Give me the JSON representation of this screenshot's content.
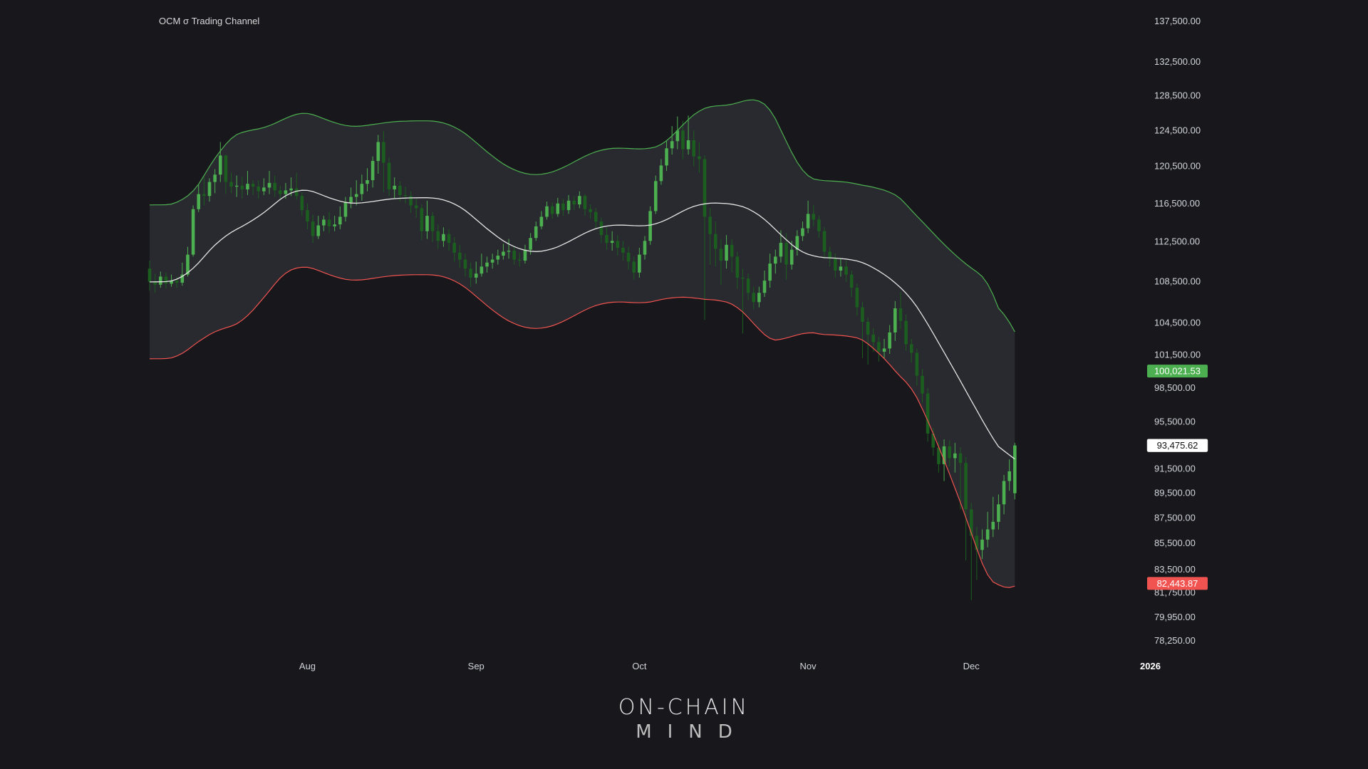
{
  "chart_data": {
    "type": "candlestick",
    "title": "OCM σ Trading Channel",
    "y_axis": {
      "ticks": [
        "137,500.00",
        "132,500.00",
        "128,500.00",
        "124,500.00",
        "120,500.00",
        "116,500.00",
        "112,500.00",
        "108,500.00",
        "104,500.00",
        "101,500.00",
        "98,500.00",
        "95,500.00",
        "91,500.00",
        "89,500.00",
        "87,500.00",
        "85,500.00",
        "83,500.00",
        "81,750.00",
        "79,950.00",
        "78,250.00"
      ],
      "range": [
        78250,
        137500
      ],
      "scale": "log"
    },
    "x_axis": {
      "ticks": [
        "Aug",
        "Sep",
        "Oct",
        "Nov",
        "Dec",
        "2026"
      ],
      "range": [
        "2025-07-03",
        "2026-01-01"
      ]
    },
    "price_labels": {
      "upper": {
        "text": "100,021.53",
        "color": "#4caf50"
      },
      "middle": {
        "text": "93,475.62",
        "color": "#ffffff"
      },
      "lower": {
        "text": "82,443.87",
        "color": "#f05350"
      }
    },
    "series": [
      {
        "name": "upper band",
        "color": "#4caf50"
      },
      {
        "name": "middle",
        "color": "#e6e6e6"
      },
      {
        "name": "lower band",
        "color": "#f05350"
      }
    ],
    "dates_start": "2025-07-03",
    "candles_close": [
      108500,
      108200,
      109000,
      108300,
      108600,
      108400,
      109200,
      111200,
      115900,
      117500,
      117300,
      118800,
      119600,
      121700,
      118800,
      118300,
      118400,
      118000,
      118600,
      118300,
      117800,
      118200,
      118700,
      117900,
      117500,
      117900,
      118100,
      117300,
      115800,
      114600,
      113100,
      114200,
      114800,
      114100,
      114300,
      115100,
      116600,
      117200,
      117500,
      118600,
      119000,
      121100,
      123200,
      120900,
      118000,
      118400,
      117400,
      117300,
      116300,
      116000,
      113600,
      115200,
      113600,
      112600,
      113300,
      112400,
      111400,
      110700,
      109800,
      108900,
      109300,
      110000,
      110400,
      110700,
      111100,
      111500,
      111600,
      110700,
      110600,
      111700,
      112900,
      114100,
      115100,
      116200,
      115400,
      116500,
      115800,
      116800,
      116400,
      117300,
      115900,
      115600,
      114600,
      113200,
      112400,
      112600,
      111900,
      111400,
      110500,
      109400,
      111200,
      112600,
      115700,
      118900,
      120600,
      122500,
      123300,
      124500,
      122400,
      123400,
      121600,
      121300,
      115100,
      113300,
      111800,
      110600,
      112200,
      111000,
      108900,
      108800,
      107400,
      106500,
      107400,
      108600,
      110300,
      111000,
      112400,
      110200,
      111700,
      113100,
      113900,
      115400,
      114800,
      113600,
      111500,
      110800,
      109600,
      110000,
      109200,
      107900,
      106000,
      104600,
      103400,
      102700,
      101800,
      102100,
      103600,
      105900,
      104700,
      102500,
      101700,
      99600,
      98000,
      94500,
      93300,
      91900,
      93400,
      92400,
      92800,
      92000,
      88200,
      86100,
      85000,
      85800,
      86600,
      87200,
      88600,
      90500,
      91300,
      93475
    ],
    "candles": [
      {
        "o": 109800,
        "c": 108500,
        "h": 110600,
        "l": 107600
      },
      {
        "o": 108500,
        "c": 108200,
        "h": 109300,
        "l": 107400
      },
      {
        "o": 108200,
        "c": 109000,
        "h": 109500,
        "l": 107900
      },
      {
        "o": 109000,
        "c": 108300,
        "h": 109400,
        "l": 107800
      },
      {
        "o": 108300,
        "c": 108600,
        "h": 109200,
        "l": 108000
      },
      {
        "o": 108600,
        "c": 108400,
        "h": 109000,
        "l": 107900
      },
      {
        "o": 108400,
        "c": 109200,
        "h": 110400,
        "l": 108100
      },
      {
        "o": 109200,
        "c": 111200,
        "h": 112000,
        "l": 109000
      },
      {
        "o": 111200,
        "c": 115900,
        "h": 116300,
        "l": 111000
      },
      {
        "o": 115900,
        "c": 117500,
        "h": 118500,
        "l": 115600
      },
      {
        "o": 117500,
        "c": 117300,
        "h": 119400,
        "l": 116300
      },
      {
        "o": 117300,
        "c": 118800,
        "h": 119200,
        "l": 116700
      },
      {
        "o": 118800,
        "c": 119600,
        "h": 120200,
        "l": 117600
      },
      {
        "o": 119600,
        "c": 121700,
        "h": 123200,
        "l": 118800
      },
      {
        "o": 121700,
        "c": 118800,
        "h": 121800,
        "l": 117500
      },
      {
        "o": 118800,
        "c": 118300,
        "h": 119800,
        "l": 117600
      },
      {
        "o": 118300,
        "c": 118400,
        "h": 119500,
        "l": 117200
      },
      {
        "o": 118400,
        "c": 118000,
        "h": 119400,
        "l": 117000
      },
      {
        "o": 118000,
        "c": 118600,
        "h": 120000,
        "l": 117400
      },
      {
        "o": 118600,
        "c": 118300,
        "h": 119000,
        "l": 117400
      },
      {
        "o": 118300,
        "c": 117800,
        "h": 119000,
        "l": 117000
      },
      {
        "o": 117800,
        "c": 118200,
        "h": 119200,
        "l": 117400
      },
      {
        "o": 118200,
        "c": 118700,
        "h": 120000,
        "l": 117500
      },
      {
        "o": 118700,
        "c": 117900,
        "h": 119500,
        "l": 117200
      },
      {
        "o": 117900,
        "c": 117500,
        "h": 118400,
        "l": 116900
      },
      {
        "o": 117500,
        "c": 117900,
        "h": 118700,
        "l": 117000
      },
      {
        "o": 117900,
        "c": 118100,
        "h": 119300,
        "l": 117300
      },
      {
        "o": 118100,
        "c": 117300,
        "h": 119800,
        "l": 116900
      },
      {
        "o": 117300,
        "c": 115800,
        "h": 117700,
        "l": 115200
      },
      {
        "o": 115800,
        "c": 114600,
        "h": 116500,
        "l": 113800
      },
      {
        "o": 114600,
        "c": 113100,
        "h": 115300,
        "l": 112400
      },
      {
        "o": 113100,
        "c": 114200,
        "h": 115200,
        "l": 112800
      },
      {
        "o": 114200,
        "c": 114800,
        "h": 115200,
        "l": 113600
      },
      {
        "o": 114800,
        "c": 114100,
        "h": 115600,
        "l": 113400
      },
      {
        "o": 114100,
        "c": 114300,
        "h": 115200,
        "l": 113600
      },
      {
        "o": 114300,
        "c": 115100,
        "h": 116200,
        "l": 113800
      },
      {
        "o": 115100,
        "c": 116600,
        "h": 117200,
        "l": 114600
      },
      {
        "o": 116600,
        "c": 117200,
        "h": 118200,
        "l": 116000
      },
      {
        "o": 117200,
        "c": 117500,
        "h": 119000,
        "l": 116300
      },
      {
        "o": 117500,
        "c": 118600,
        "h": 119600,
        "l": 116800
      },
      {
        "o": 118600,
        "c": 119000,
        "h": 120300,
        "l": 117800
      },
      {
        "o": 119000,
        "c": 121100,
        "h": 121600,
        "l": 118200
      },
      {
        "o": 121100,
        "c": 123200,
        "h": 124000,
        "l": 119700
      },
      {
        "o": 123200,
        "c": 120900,
        "h": 124400,
        "l": 117700
      },
      {
        "o": 120900,
        "c": 118000,
        "h": 121500,
        "l": 117300
      },
      {
        "o": 118000,
        "c": 118400,
        "h": 119300,
        "l": 117000
      },
      {
        "o": 118400,
        "c": 117400,
        "h": 118900,
        "l": 116700
      },
      {
        "o": 117400,
        "c": 117300,
        "h": 118300,
        "l": 116500
      },
      {
        "o": 117300,
        "c": 116300,
        "h": 117800,
        "l": 115500
      },
      {
        "o": 116300,
        "c": 116000,
        "h": 117000,
        "l": 115000
      },
      {
        "o": 116000,
        "c": 113600,
        "h": 116400,
        "l": 112700
      },
      {
        "o": 113600,
        "c": 115200,
        "h": 116800,
        "l": 112800
      },
      {
        "o": 115200,
        "c": 113600,
        "h": 115600,
        "l": 112500
      },
      {
        "o": 113600,
        "c": 112600,
        "h": 114300,
        "l": 111800
      },
      {
        "o": 112600,
        "c": 113300,
        "h": 114000,
        "l": 112000
      },
      {
        "o": 113300,
        "c": 112400,
        "h": 113800,
        "l": 111600
      },
      {
        "o": 112400,
        "c": 111400,
        "h": 113000,
        "l": 110500
      },
      {
        "o": 111400,
        "c": 110700,
        "h": 112200,
        "l": 109900
      },
      {
        "o": 110700,
        "c": 109800,
        "h": 111300,
        "l": 109000
      },
      {
        "o": 109800,
        "c": 108900,
        "h": 110400,
        "l": 108000
      },
      {
        "o": 108900,
        "c": 109300,
        "h": 110500,
        "l": 108300
      },
      {
        "o": 109300,
        "c": 110000,
        "h": 111300,
        "l": 109000
      },
      {
        "o": 110000,
        "c": 110400,
        "h": 111000,
        "l": 109400
      },
      {
        "o": 110400,
        "c": 110700,
        "h": 111300,
        "l": 109800
      },
      {
        "o": 110700,
        "c": 111100,
        "h": 111700,
        "l": 110200
      },
      {
        "o": 111100,
        "c": 111500,
        "h": 112300,
        "l": 110700
      },
      {
        "o": 111500,
        "c": 111600,
        "h": 112800,
        "l": 110800
      },
      {
        "o": 111600,
        "c": 110700,
        "h": 112000,
        "l": 110200
      },
      {
        "o": 110700,
        "c": 110600,
        "h": 111400,
        "l": 110000
      },
      {
        "o": 110600,
        "c": 111700,
        "h": 112200,
        "l": 110300
      },
      {
        "o": 111700,
        "c": 112900,
        "h": 113400,
        "l": 111200
      },
      {
        "o": 112900,
        "c": 114100,
        "h": 114600,
        "l": 112600
      },
      {
        "o": 114100,
        "c": 115100,
        "h": 115700,
        "l": 113800
      },
      {
        "o": 115100,
        "c": 116200,
        "h": 116700,
        "l": 114800
      },
      {
        "o": 116200,
        "c": 115400,
        "h": 116600,
        "l": 114900
      },
      {
        "o": 115400,
        "c": 116500,
        "h": 117100,
        "l": 115100
      },
      {
        "o": 116500,
        "c": 115800,
        "h": 117000,
        "l": 115200
      },
      {
        "o": 115800,
        "c": 116800,
        "h": 117400,
        "l": 115400
      },
      {
        "o": 116800,
        "c": 116400,
        "h": 117300,
        "l": 115800
      },
      {
        "o": 116400,
        "c": 117300,
        "h": 117800,
        "l": 116000
      },
      {
        "o": 117300,
        "c": 115900,
        "h": 117500,
        "l": 115200
      },
      {
        "o": 115900,
        "c": 115600,
        "h": 116400,
        "l": 114900
      },
      {
        "o": 115600,
        "c": 114600,
        "h": 116000,
        "l": 113900
      },
      {
        "o": 114600,
        "c": 113200,
        "h": 115000,
        "l": 112400
      },
      {
        "o": 113200,
        "c": 112400,
        "h": 114000,
        "l": 111700
      },
      {
        "o": 112400,
        "c": 112600,
        "h": 113600,
        "l": 111600
      },
      {
        "o": 112600,
        "c": 111900,
        "h": 113200,
        "l": 111100
      },
      {
        "o": 111900,
        "c": 111400,
        "h": 112600,
        "l": 110600
      },
      {
        "o": 111400,
        "c": 110500,
        "h": 112000,
        "l": 109700
      },
      {
        "o": 110500,
        "c": 109400,
        "h": 111000,
        "l": 108700
      },
      {
        "o": 109400,
        "c": 111200,
        "h": 111900,
        "l": 108900
      },
      {
        "o": 111200,
        "c": 112600,
        "h": 113100,
        "l": 110700
      },
      {
        "o": 112600,
        "c": 115700,
        "h": 116200,
        "l": 112200
      },
      {
        "o": 115700,
        "c": 118900,
        "h": 119500,
        "l": 115400
      },
      {
        "o": 118900,
        "c": 120600,
        "h": 121300,
        "l": 118500
      },
      {
        "o": 120600,
        "c": 122500,
        "h": 123300,
        "l": 120000
      },
      {
        "o": 122500,
        "c": 123300,
        "h": 125000,
        "l": 121800
      },
      {
        "o": 123300,
        "c": 124500,
        "h": 126100,
        "l": 122400
      },
      {
        "o": 124500,
        "c": 122400,
        "h": 125600,
        "l": 121300
      },
      {
        "o": 122400,
        "c": 123400,
        "h": 126200,
        "l": 121800
      },
      {
        "o": 123400,
        "c": 121600,
        "h": 124500,
        "l": 120500
      },
      {
        "o": 121600,
        "c": 121300,
        "h": 123200,
        "l": 119800
      },
      {
        "o": 121300,
        "c": 115100,
        "h": 121700,
        "l": 104800
      },
      {
        "o": 115100,
        "c": 113300,
        "h": 116000,
        "l": 110200
      },
      {
        "o": 113300,
        "c": 111800,
        "h": 114600,
        "l": 110000
      },
      {
        "o": 111800,
        "c": 110600,
        "h": 112800,
        "l": 108200
      },
      {
        "o": 110600,
        "c": 112200,
        "h": 113200,
        "l": 109800
      },
      {
        "o": 112200,
        "c": 111000,
        "h": 112800,
        "l": 109400
      },
      {
        "o": 111000,
        "c": 108900,
        "h": 111500,
        "l": 107800
      },
      {
        "o": 108900,
        "c": 108800,
        "h": 109800,
        "l": 103500
      },
      {
        "o": 108800,
        "c": 107400,
        "h": 109300,
        "l": 106700
      },
      {
        "o": 107400,
        "c": 106500,
        "h": 108000,
        "l": 105800
      },
      {
        "o": 106500,
        "c": 107400,
        "h": 108000,
        "l": 106000
      },
      {
        "o": 107400,
        "c": 108600,
        "h": 109600,
        "l": 107000
      },
      {
        "o": 108600,
        "c": 110300,
        "h": 111300,
        "l": 107900
      },
      {
        "o": 110300,
        "c": 111000,
        "h": 111700,
        "l": 109300
      },
      {
        "o": 111000,
        "c": 112400,
        "h": 113700,
        "l": 110400
      },
      {
        "o": 112400,
        "c": 110200,
        "h": 113400,
        "l": 108700
      },
      {
        "o": 110200,
        "c": 111700,
        "h": 112600,
        "l": 109700
      },
      {
        "o": 111700,
        "c": 113100,
        "h": 113700,
        "l": 111100
      },
      {
        "o": 113100,
        "c": 113900,
        "h": 114600,
        "l": 112600
      },
      {
        "o": 113900,
        "c": 115400,
        "h": 116800,
        "l": 113400
      },
      {
        "o": 115400,
        "c": 114800,
        "h": 116300,
        "l": 114100
      },
      {
        "o": 114800,
        "c": 113600,
        "h": 115200,
        "l": 112900
      },
      {
        "o": 113600,
        "c": 111500,
        "h": 114000,
        "l": 110800
      },
      {
        "o": 111500,
        "c": 110800,
        "h": 112000,
        "l": 110000
      },
      {
        "o": 110800,
        "c": 109600,
        "h": 111300,
        "l": 108900
      },
      {
        "o": 109600,
        "c": 110000,
        "h": 110800,
        "l": 109000
      },
      {
        "o": 110000,
        "c": 109200,
        "h": 110600,
        "l": 108500
      },
      {
        "o": 109200,
        "c": 107900,
        "h": 109600,
        "l": 107000
      },
      {
        "o": 107900,
        "c": 106000,
        "h": 108300,
        "l": 105200
      },
      {
        "o": 106000,
        "c": 104600,
        "h": 106500,
        "l": 101200
      },
      {
        "o": 104600,
        "c": 103400,
        "h": 105000,
        "l": 100600
      },
      {
        "o": 103400,
        "c": 102700,
        "h": 104000,
        "l": 101800
      },
      {
        "o": 102700,
        "c": 101800,
        "h": 103200,
        "l": 100900
      },
      {
        "o": 101800,
        "c": 102100,
        "h": 103000,
        "l": 101200
      },
      {
        "o": 102100,
        "c": 103600,
        "h": 104300,
        "l": 101600
      },
      {
        "o": 103600,
        "c": 105900,
        "h": 106600,
        "l": 102800
      },
      {
        "o": 105900,
        "c": 104700,
        "h": 107500,
        "l": 103900
      },
      {
        "o": 104700,
        "c": 102500,
        "h": 105300,
        "l": 101900
      },
      {
        "o": 102500,
        "c": 101700,
        "h": 103000,
        "l": 100800
      },
      {
        "o": 101700,
        "c": 99600,
        "h": 102100,
        "l": 98700
      },
      {
        "o": 99600,
        "c": 98000,
        "h": 100200,
        "l": 97200
      },
      {
        "o": 98000,
        "c": 94500,
        "h": 98500,
        "l": 93800
      },
      {
        "o": 94500,
        "c": 93300,
        "h": 95000,
        "l": 92600
      },
      {
        "o": 93300,
        "c": 91900,
        "h": 93800,
        "l": 91200
      },
      {
        "o": 91900,
        "c": 93400,
        "h": 94000,
        "l": 90500
      },
      {
        "o": 93400,
        "c": 92400,
        "h": 93900,
        "l": 91700
      },
      {
        "o": 92400,
        "c": 92800,
        "h": 93700,
        "l": 91200
      },
      {
        "o": 92800,
        "c": 92000,
        "h": 93300,
        "l": 88200
      },
      {
        "o": 92000,
        "c": 88200,
        "h": 92500,
        "l": 84200
      },
      {
        "o": 88200,
        "c": 86100,
        "h": 88700,
        "l": 81200
      },
      {
        "o": 86100,
        "c": 85000,
        "h": 86800,
        "l": 82700
      },
      {
        "o": 85000,
        "c": 85800,
        "h": 86600,
        "l": 84300
      },
      {
        "o": 85800,
        "c": 86600,
        "h": 88000,
        "l": 85200
      },
      {
        "o": 86600,
        "c": 87200,
        "h": 89200,
        "l": 86000
      },
      {
        "o": 87200,
        "c": 88600,
        "h": 89400,
        "l": 86600
      },
      {
        "o": 88600,
        "c": 90500,
        "h": 91000,
        "l": 87800
      },
      {
        "o": 90500,
        "c": 91300,
        "h": 92300,
        "l": 89700
      },
      {
        "o": 89500,
        "c": 93475,
        "h": 93700,
        "l": 89000
      }
    ]
  },
  "logo": {
    "line1": "ON-CHAIN",
    "line2": "MIND"
  }
}
